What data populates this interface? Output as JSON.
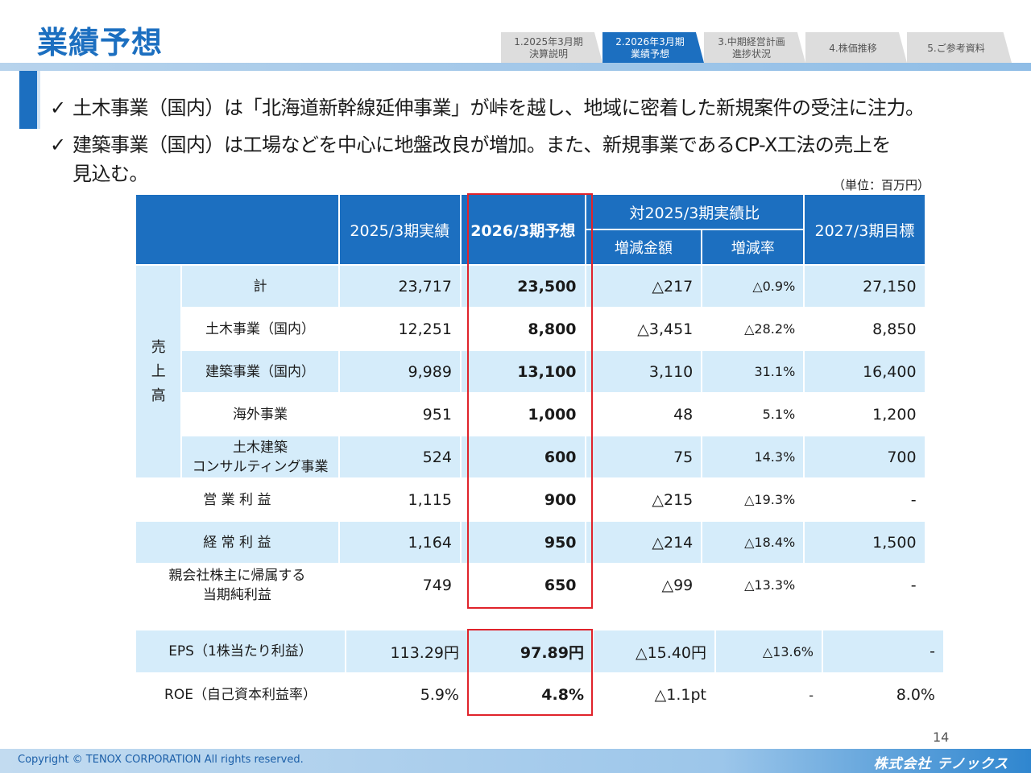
{
  "title": "業績予想",
  "nav": [
    {
      "label": "1.2025年3月期\n決算説明",
      "active": false
    },
    {
      "label": "2.2026年3月期\n業績予想",
      "active": true
    },
    {
      "label": "3.中期経営計画\n進捗状況",
      "active": false
    },
    {
      "label": "4.株価推移",
      "active": false
    },
    {
      "label": "5.ご参考資料",
      "active": false
    }
  ],
  "bullets": {
    "check": "✓",
    "b1": "土木事業（国内）は「北海道新幹線延伸事業」が峠を越し、地域に密着した新規案件の受注に注力。",
    "b2_line1": "建築事業（国内）は工場などを中心に地盤改良が増加。また、新規事業であるCP-X工法の売上を",
    "b2_line2": "見込む。"
  },
  "unit": "（単位：百万円）",
  "table": {
    "headers": {
      "fy2025": "2025/3期実績",
      "fy2026": "2026/3期予想",
      "vs": "対2025/3期実績比",
      "diff_amt": "増減金額",
      "diff_rate": "増減率",
      "fy2027": "2027/3期目標"
    },
    "sales_label_chars": [
      "売",
      "上",
      "高"
    ],
    "rows": [
      {
        "label": "計",
        "fy2025": "23,717",
        "fy2026": "23,500",
        "diff": "△217",
        "rate": "△0.9%",
        "fy2027": "27,150"
      },
      {
        "label": "土木事業（国内）",
        "fy2025": "12,251",
        "fy2026": "8,800",
        "diff": "△3,451",
        "rate": "△28.2%",
        "fy2027": "8,850"
      },
      {
        "label": "建築事業（国内）",
        "fy2025": "9,989",
        "fy2026": "13,100",
        "diff": "3,110",
        "rate": "31.1%",
        "fy2027": "16,400"
      },
      {
        "label": "海外事業",
        "fy2025": "951",
        "fy2026": "1,000",
        "diff": "48",
        "rate": "5.1%",
        "fy2027": "1,200"
      },
      {
        "label": "土木建築\nコンサルティング事業",
        "fy2025": "524",
        "fy2026": "600",
        "diff": "75",
        "rate": "14.3%",
        "fy2027": "700"
      },
      {
        "label": "営 業 利 益",
        "fy2025": "1,115",
        "fy2026": "900",
        "diff": "△215",
        "rate": "△19.3%",
        "fy2027": "-"
      },
      {
        "label": "経 常 利 益",
        "fy2025": "1,164",
        "fy2026": "950",
        "diff": "△214",
        "rate": "△18.4%",
        "fy2027": "1,500"
      },
      {
        "label": "親会社株主に帰属する\n当期純利益",
        "fy2025": "749",
        "fy2026": "650",
        "diff": "△99",
        "rate": "△13.3%",
        "fy2027": "-"
      }
    ],
    "rows2": [
      {
        "label": "EPS（1株当たり利益）",
        "fy2025": "113.29円",
        "fy2026": "97.89円",
        "diff": "△15.40円",
        "rate": "△13.6%",
        "fy2027": "-"
      },
      {
        "label": "ROE（自己資本利益率）",
        "fy2025": "5.9%",
        "fy2026": "4.8%",
        "diff": "△1.1pt",
        "rate": "-",
        "fy2027": "8.0%"
      }
    ]
  },
  "page_number": "14",
  "footer": {
    "copyright": "Copyright © TENOX CORPORATION All rights reserved.",
    "logo": "株式会社 テノックス"
  },
  "colors": {
    "brand": "#1c6fc0",
    "highlight": "#e0232b",
    "row_light": "#d5ecfa"
  }
}
